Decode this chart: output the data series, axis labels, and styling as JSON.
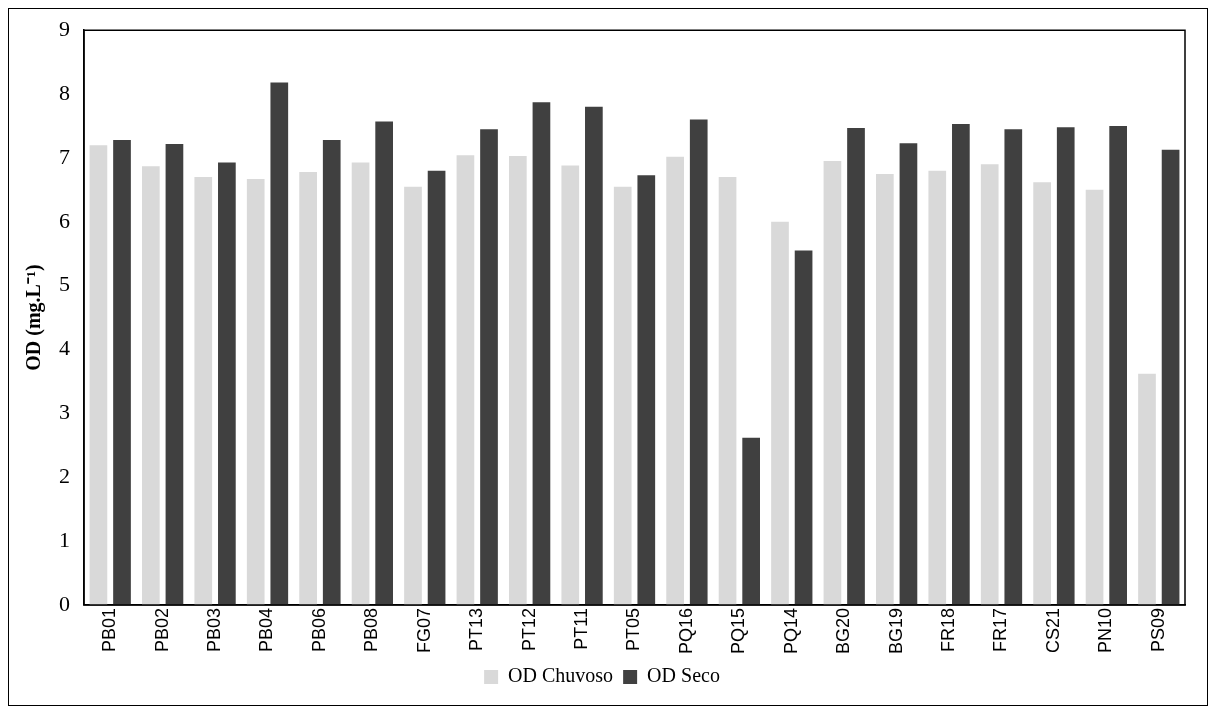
{
  "chart_data": {
    "type": "bar",
    "ylabel": "OD (mg.L⁻¹)",
    "categories": [
      "PB01",
      "PB02",
      "PB03",
      "PB04",
      "PB06",
      "PB08",
      "FG07",
      "PT13",
      "PT12",
      "PT11",
      "PT05",
      "PQ16",
      "PQ15",
      "PQ14",
      "BG20",
      "BG19",
      "FR18",
      "FR17",
      "CS21",
      "PN10",
      "PS09"
    ],
    "series": [
      {
        "name": "OD Chuvoso",
        "color": "#d9d9d9",
        "values": [
          7.2,
          6.87,
          6.7,
          6.67,
          6.78,
          6.93,
          6.55,
          7.04,
          7.03,
          6.88,
          6.55,
          7.02,
          6.7,
          6.0,
          6.95,
          6.75,
          6.8,
          6.9,
          6.62,
          6.5,
          3.62
        ]
      },
      {
        "name": "OD Seco",
        "color": "#404040",
        "values": [
          7.28,
          7.22,
          6.93,
          8.18,
          7.28,
          7.57,
          6.8,
          7.45,
          7.87,
          7.8,
          6.73,
          7.6,
          2.62,
          5.55,
          7.47,
          7.23,
          7.53,
          7.45,
          7.48,
          7.5,
          7.13
        ]
      }
    ],
    "ylim": [
      0,
      9
    ],
    "yticks": [
      0,
      1,
      2,
      3,
      4,
      5,
      6,
      7,
      8,
      9
    ],
    "grid": false,
    "legend": "bottom"
  }
}
